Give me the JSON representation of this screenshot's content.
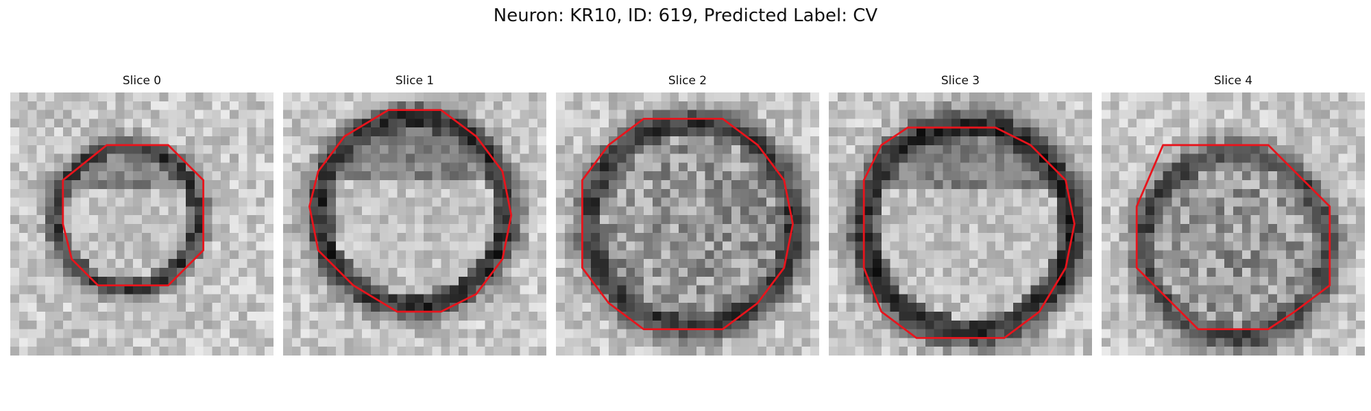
{
  "figure": {
    "title": "Neuron: KR10, ID: 619, Predicted Label: CV"
  },
  "slices": [
    {
      "title": "Slice 0",
      "grid": 30,
      "ring_darkness": 0.55,
      "interior": "bright",
      "outline": [
        [
          11,
          6
        ],
        [
          18,
          6
        ],
        [
          22,
          10
        ],
        [
          22,
          18
        ],
        [
          18,
          22
        ],
        [
          10,
          22
        ],
        [
          7,
          19
        ],
        [
          6,
          15
        ],
        [
          6,
          10
        ]
      ]
    },
    {
      "title": "Slice 1",
      "grid": 30,
      "ring_darkness": 0.6,
      "interior": "bright",
      "outline": [
        [
          12,
          2
        ],
        [
          18,
          2
        ],
        [
          22,
          5
        ],
        [
          25,
          9
        ],
        [
          26,
          14
        ],
        [
          25,
          19
        ],
        [
          22,
          23
        ],
        [
          18,
          25
        ],
        [
          13,
          25
        ],
        [
          8,
          22
        ],
        [
          4,
          18
        ],
        [
          3,
          13
        ],
        [
          4,
          9
        ],
        [
          7,
          5
        ]
      ]
    },
    {
      "title": "Slice 2",
      "grid": 30,
      "ring_darkness": 0.55,
      "interior": "mixed",
      "outline": [
        [
          10,
          3
        ],
        [
          19,
          3
        ],
        [
          23,
          6
        ],
        [
          26,
          10
        ],
        [
          27,
          15
        ],
        [
          26,
          20
        ],
        [
          23,
          24
        ],
        [
          19,
          27
        ],
        [
          10,
          27
        ],
        [
          6,
          24
        ],
        [
          3,
          20
        ],
        [
          3,
          10
        ],
        [
          6,
          6
        ]
      ]
    },
    {
      "title": "Slice 3",
      "grid": 30,
      "ring_darkness": 0.62,
      "interior": "bright",
      "outline": [
        [
          9,
          4
        ],
        [
          19,
          4
        ],
        [
          23,
          6
        ],
        [
          27,
          10
        ],
        [
          28,
          15
        ],
        [
          27,
          20
        ],
        [
          24,
          25
        ],
        [
          20,
          28
        ],
        [
          10,
          28
        ],
        [
          6,
          25
        ],
        [
          4,
          20
        ],
        [
          4,
          10
        ],
        [
          6,
          6
        ]
      ]
    },
    {
      "title": "Slice 4",
      "grid": 30,
      "ring_darkness": 0.5,
      "interior": "mixed",
      "outline": [
        [
          7,
          6
        ],
        [
          19,
          6
        ],
        [
          23,
          10
        ],
        [
          26,
          13
        ],
        [
          26,
          22
        ],
        [
          22,
          25
        ],
        [
          19,
          27
        ],
        [
          11,
          27
        ],
        [
          7,
          23
        ],
        [
          4,
          20
        ],
        [
          4,
          13
        ]
      ]
    }
  ],
  "style": {
    "outline_color": "#e8141c"
  }
}
